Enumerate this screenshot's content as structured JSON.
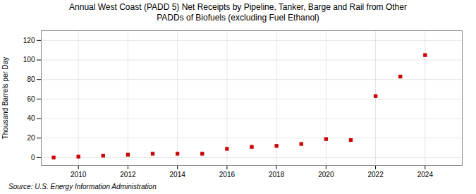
{
  "chart_data": {
    "type": "scatter",
    "title": "Annual West Coast (PADD 5) Net Receipts by Pipeline, Tanker, Barge and Rail from Other\nPADDs of Biofuels (excluding Fuel Ethanol)",
    "ylabel": "Thousand Barrels per Day",
    "source": "Source: U.S. Energy Information Administration",
    "x": [
      2009,
      2010,
      2011,
      2012,
      2013,
      2014,
      2015,
      2016,
      2017,
      2018,
      2019,
      2020,
      2021,
      2022,
      2023,
      2024
    ],
    "values": [
      0.1,
      1.0,
      2.0,
      3.0,
      4.0,
      4.0,
      4.0,
      9.0,
      11.0,
      12.0,
      14.0,
      19.0,
      18.0,
      63.0,
      83.0,
      105.0
    ],
    "color": "#cc0000",
    "marker": "square",
    "xlim": [
      2008.5,
      2025.5
    ],
    "ylim": [
      -8,
      130
    ],
    "xticks": [
      2010,
      2012,
      2014,
      2016,
      2018,
      2020,
      2022,
      2024
    ],
    "yticks": [
      0,
      20,
      40,
      60,
      80,
      100,
      120
    ],
    "grid": true
  }
}
